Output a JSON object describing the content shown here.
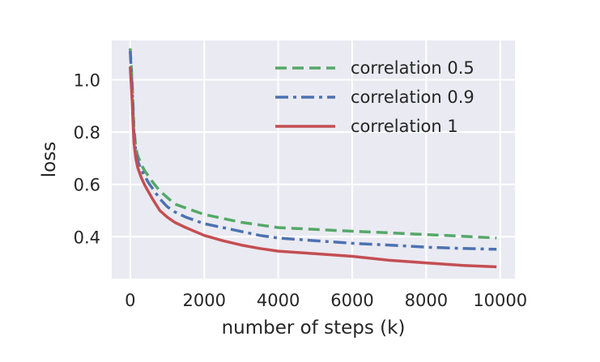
{
  "chart_data": {
    "type": "line",
    "title": "",
    "xlabel": "number of steps (k)",
    "ylabel": "loss",
    "xlim": [
      -500,
      10400
    ],
    "ylim": [
      0.24,
      1.15
    ],
    "xticks": [
      0,
      2000,
      4000,
      6000,
      8000,
      10000
    ],
    "xtick_labels": [
      "0",
      "2000",
      "4000",
      "6000",
      "8000",
      "10000"
    ],
    "yticks": [
      0.4,
      0.6,
      0.8,
      1.0
    ],
    "ytick_labels": [
      "0.4",
      "0.6",
      "0.8",
      "1.0"
    ],
    "grid": true,
    "legend_position": "top-right",
    "background": "#eaeaf2",
    "series": [
      {
        "name": "correlation 0.5",
        "color": "#55a868",
        "dash": "dashed",
        "x": [
          0,
          50,
          100,
          150,
          200,
          300,
          400,
          500,
          600,
          800,
          1000,
          1200,
          1500,
          2000,
          2500,
          3000,
          3500,
          4000,
          5000,
          6000,
          7000,
          8000,
          9000,
          9900
        ],
        "y": [
          1.12,
          1.0,
          0.82,
          0.74,
          0.71,
          0.675,
          0.65,
          0.63,
          0.61,
          0.575,
          0.55,
          0.525,
          0.51,
          0.485,
          0.47,
          0.455,
          0.445,
          0.435,
          0.428,
          0.421,
          0.415,
          0.408,
          0.402,
          0.395
        ]
      },
      {
        "name": "correlation 0.9",
        "color": "#4c72b0",
        "dash": "dashdot",
        "x": [
          0,
          50,
          100,
          150,
          200,
          300,
          400,
          500,
          600,
          800,
          1000,
          1200,
          1500,
          2000,
          2500,
          3000,
          3500,
          4000,
          5000,
          6000,
          7000,
          8000,
          9000,
          9900
        ],
        "y": [
          1.11,
          0.98,
          0.8,
          0.725,
          0.69,
          0.655,
          0.63,
          0.605,
          0.585,
          0.545,
          0.515,
          0.495,
          0.475,
          0.45,
          0.435,
          0.42,
          0.405,
          0.395,
          0.385,
          0.375,
          0.368,
          0.36,
          0.355,
          0.352
        ]
      },
      {
        "name": "correlation 1",
        "color": "#c44e52",
        "dash": "solid",
        "x": [
          0,
          50,
          100,
          150,
          200,
          300,
          400,
          500,
          600,
          800,
          1000,
          1200,
          1500,
          2000,
          2500,
          3000,
          3500,
          4000,
          5000,
          6000,
          7000,
          8000,
          9000,
          9900
        ],
        "y": [
          1.05,
          0.92,
          0.76,
          0.7,
          0.665,
          0.625,
          0.595,
          0.57,
          0.545,
          0.5,
          0.475,
          0.455,
          0.435,
          0.405,
          0.385,
          0.368,
          0.355,
          0.345,
          0.335,
          0.325,
          0.31,
          0.3,
          0.29,
          0.285
        ]
      }
    ]
  }
}
